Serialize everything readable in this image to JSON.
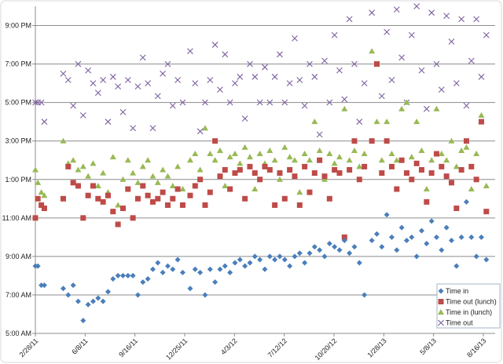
{
  "chart_data": {
    "type": "scatter",
    "title": "",
    "xlabel": "",
    "ylabel": "",
    "xlim": [
      "2/28/11",
      "9/5/13"
    ],
    "ylim": [
      "5:00 AM",
      "10:00 PM"
    ],
    "grid": "horizontal",
    "legend_position": "bottom-right",
    "x_ticks": [
      "2/28/11",
      "6/8/11",
      "9/16/11",
      "12/25/11",
      "4/3/12",
      "7/12/12",
      "10/20/12",
      "1/28/13",
      "5/8/13",
      "8/16/13"
    ],
    "y_ticks": [
      "5:00 AM",
      "7:00 AM",
      "9:00 AM",
      "11:00 AM",
      "1:00 PM",
      "3:00 PM",
      "5:00 PM",
      "7:00 PM",
      "9:00 PM"
    ],
    "x": [
      "2/28/11",
      "3/5/11",
      "3/12/11",
      "3/18/11",
      "4/25/11",
      "5/5/11",
      "5/15/11",
      "5/25/11",
      "6/4/11",
      "6/14/11",
      "6/24/11",
      "7/4/11",
      "7/14/11",
      "7/24/11",
      "8/3/11",
      "8/13/11",
      "8/23/11",
      "9/2/11",
      "9/12/11",
      "9/22/11",
      "10/2/11",
      "10/12/11",
      "10/22/11",
      "11/1/11",
      "11/11/11",
      "11/21/11",
      "12/1/11",
      "12/11/11",
      "12/21/11",
      "1/5/12",
      "1/15/12",
      "1/25/12",
      "2/4/12",
      "2/14/12",
      "2/24/12",
      "3/5/12",
      "3/15/12",
      "3/25/12",
      "4/4/12",
      "4/14/12",
      "4/24/12",
      "5/4/12",
      "5/14/12",
      "5/24/12",
      "6/3/12",
      "6/13/12",
      "6/23/12",
      "7/3/12",
      "7/13/12",
      "7/23/12",
      "8/2/12",
      "8/12/12",
      "8/22/12",
      "9/1/12",
      "9/11/12",
      "9/21/12",
      "10/1/12",
      "10/11/12",
      "10/21/12",
      "10/31/12",
      "11/10/12",
      "11/20/12",
      "11/30/12",
      "12/10/12",
      "12/20/12",
      "1/4/13",
      "1/14/13",
      "1/24/13",
      "2/3/13",
      "2/13/13",
      "2/23/13",
      "3/5/13",
      "3/15/13",
      "3/25/13",
      "4/4/13",
      "4/14/13",
      "4/24/13",
      "5/4/13",
      "5/14/13",
      "5/24/13",
      "6/3/13",
      "6/13/13",
      "6/23/13",
      "7/3/13",
      "7/13/13",
      "7/23/13",
      "8/2/13",
      "8/12/13",
      "8/22/13"
    ],
    "series": [
      {
        "name": "Time in",
        "color": "#4a7ebb",
        "marker": "diamond",
        "values": [
          "8:30",
          "8:30",
          "7:30",
          "7:30",
          "7:20",
          "7:00",
          "7:30",
          "6:40",
          "5:40",
          "6:30",
          "6:40",
          "6:50",
          "6:40",
          "7:10",
          "7:50",
          "8:00",
          "8:00",
          "8:00",
          "8:00",
          "7:00",
          "7:40",
          "7:50",
          "8:20",
          "8:40",
          "8:10",
          "8:30",
          "8:20",
          "8:50",
          "8:10",
          "7:20",
          "8:20",
          "8:10",
          "7:00",
          "8:20",
          "7:40",
          "8:20",
          "8:30",
          "8:10",
          "8:40",
          "8:50",
          "8:30",
          "8:40",
          "9:00",
          "8:50",
          "8:20",
          "9:00",
          "8:50",
          "9:00",
          "8:50",
          "8:30",
          "9:00",
          "9:10",
          "8:40",
          "9:10",
          "9:30",
          "9:20",
          "9:00",
          "9:40",
          "9:30",
          "9:20",
          "9:50",
          "9:10",
          "9:30",
          "8:40",
          "7:00",
          "9:50",
          "10:10",
          "9:30",
          "11:10",
          "10:00",
          "9:20",
          "10:30",
          "9:50",
          "10:00",
          "9:00",
          "10:20",
          "9:40",
          "10:50",
          "10:00",
          "9:20",
          "10:30",
          "9:50",
          "8:30",
          "10:00",
          "11:50",
          "10:00",
          "9:00",
          "10:00",
          "8:50"
        ]
      },
      {
        "name": "Time out (lunch)",
        "color": "#be4b48",
        "marker": "square",
        "values": [
          "11:00",
          "12:00",
          "11:40",
          "11:30",
          "12:00",
          "13:40",
          "12:50",
          "12:40",
          "11:00",
          "12:10",
          "12:40",
          "12:00",
          "11:50",
          "12:10",
          "11:20",
          "10:40",
          "11:30",
          "12:30",
          "11:00",
          "12:00",
          "12:40",
          "12:10",
          "11:50",
          "12:00",
          "12:20",
          "11:40",
          "12:00",
          "12:30",
          "11:40",
          "12:10",
          "12:40",
          "13:00",
          "11:40",
          "12:20",
          "15:00",
          "13:10",
          "13:30",
          "12:30",
          "13:20",
          "13:30",
          "12:00",
          "13:40",
          "13:20",
          "13:00",
          "13:40",
          "13:30",
          "11:40",
          "13:20",
          "12:00",
          "13:30",
          "13:10",
          "11:40",
          "13:40",
          "12:20",
          "13:20",
          "14:00",
          "13:10",
          "12:00",
          "13:30",
          "13:20",
          "10:00",
          "13:30",
          "15:00",
          "13:00",
          "13:40",
          "15:00",
          "19:00",
          "13:20",
          "15:00",
          "13:40",
          "12:30",
          "14:00",
          "13:20",
          "13:00",
          "13:50",
          "13:30",
          "11:50",
          "13:20",
          "14:20",
          "13:40",
          "13:10",
          "12:50",
          "11:30",
          "13:30",
          "15:00",
          "13:40",
          "13:00",
          "16:00",
          "11:20"
        ]
      },
      {
        "name": "Time in (lunch)",
        "color": "#98b954",
        "marker": "triangle",
        "values": [
          "13:30",
          "12:50",
          "12:20",
          "12:10",
          "15:00",
          "13:50",
          "14:00",
          "13:30",
          "13:40",
          "13:10",
          "13:50",
          "12:40",
          "13:20",
          "12:20",
          "14:10",
          "11:40",
          "13:00",
          "14:00",
          "13:20",
          "12:50",
          "13:40",
          "14:00",
          "13:10",
          "12:50",
          "13:30",
          "13:10",
          "12:40",
          "13:40",
          "12:30",
          "14:00",
          "14:20",
          "13:30",
          "15:40",
          "14:20",
          "14:00",
          "14:30",
          "12:40",
          "14:10",
          "14:20",
          "13:50",
          "14:40",
          "14:10",
          "12:30",
          "14:20",
          "13:50",
          "14:30",
          "14:00",
          "13:00",
          "14:40",
          "14:10",
          "14:00",
          "12:20",
          "14:20",
          "14:00",
          "16:00",
          "14:30",
          "13:00",
          "14:20",
          "13:50",
          "14:10",
          "16:40",
          "14:00",
          "14:30",
          "13:40",
          "14:20",
          "19:40",
          "16:00",
          "14:00",
          "16:00",
          "14:20",
          "14:00",
          "16:40",
          "17:00",
          "14:10",
          "16:00",
          "14:30",
          "12:30",
          "14:00",
          "16:40",
          "14:20",
          "14:00",
          "15:00",
          "13:40",
          "14:30",
          "14:40",
          "12:30",
          "14:20",
          "16:20",
          "12:40"
        ]
      },
      {
        "name": "Time out",
        "color": "#7d60a0",
        "marker": "x",
        "values": [
          "17:00",
          "17:00",
          "17:00",
          "16:00",
          "18:30",
          "18:10",
          "16:50",
          "19:00",
          "16:20",
          "18:40",
          "18:00",
          "17:30",
          "18:10",
          "16:00",
          "18:20",
          "17:50",
          "16:30",
          "18:10",
          "15:40",
          "17:50",
          "19:20",
          "18:00",
          "15:40",
          "17:20",
          "18:30",
          "19:00",
          "16:50",
          "18:10",
          "17:00",
          "19:40",
          "18:00",
          "15:30",
          "17:00",
          "18:10",
          "20:00",
          "17:40",
          "19:30",
          "17:00",
          "18:00",
          "18:20",
          "16:10",
          "19:00",
          "18:20",
          "17:00",
          "18:50",
          "17:00",
          "18:20",
          "19:30",
          "17:00",
          "18:00",
          "20:20",
          "18:10",
          "16:50",
          "19:00",
          "18:20",
          "15:20",
          "19:10",
          "17:00",
          "20:30",
          "18:40",
          "17:10",
          "21:20",
          "19:00",
          "16:00",
          "18:00",
          "21:40",
          "19:00",
          "17:20",
          "20:40",
          "18:10",
          "21:50",
          "19:20",
          "17:00",
          "20:30",
          "22:00",
          "18:40",
          "16:40",
          "21:40",
          "19:00",
          "17:40",
          "21:30",
          "20:10",
          "18:00",
          "21:20",
          "16:50",
          "19:10",
          "21:20",
          "18:20",
          "20:30"
        ]
      }
    ]
  }
}
